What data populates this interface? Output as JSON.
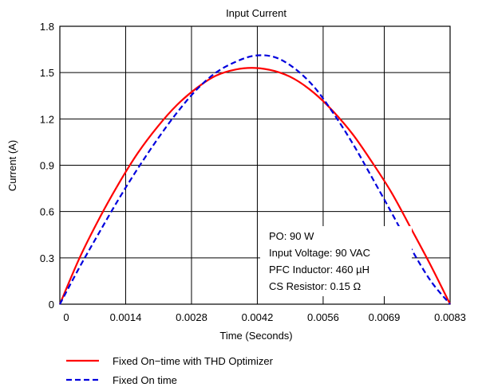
{
  "chart_data": {
    "type": "line",
    "title": "Input Current",
    "xlabel": "Time (Seconds)",
    "ylabel": "Current (A)",
    "xlim": [
      0,
      0.0083
    ],
    "ylim": [
      0,
      1.8
    ],
    "x_ticks": [
      "0",
      "0.0014",
      "0.0028",
      "0.0042",
      "0.0056",
      "0.0069",
      "0.0083"
    ],
    "y_ticks": [
      "0",
      "0.3",
      "0.6",
      "0.9",
      "1.2",
      "1.5",
      "1.8"
    ],
    "grid": true,
    "legend_position": "bottom-left",
    "annotation": [
      "PO: 90 W",
      "Input Voltage: 90 VAC",
      "PFC Inductor: 460 µH",
      "CS Resistor: 0.15 Ω"
    ],
    "series": [
      {
        "name": "Fixed On−time with THD Optimizer",
        "color": "#ff0000",
        "style": "solid",
        "x": [
          0,
          0.00042,
          0.00083,
          0.00125,
          0.00166,
          0.00208,
          0.00249,
          0.00291,
          0.00332,
          0.00374,
          0.00415,
          0.00457,
          0.00498,
          0.0054,
          0.00581,
          0.00623,
          0.00664,
          0.00706,
          0.00747,
          0.00789,
          0.0083
        ],
        "y": [
          0.0,
          0.3,
          0.55,
          0.78,
          0.98,
          1.15,
          1.29,
          1.4,
          1.48,
          1.52,
          1.53,
          1.51,
          1.46,
          1.37,
          1.25,
          1.1,
          0.92,
          0.72,
          0.49,
          0.25,
          0.0
        ]
      },
      {
        "name": "Fixed On time",
        "color": "#0000dd",
        "style": "dashed",
        "x": [
          0,
          0.00042,
          0.00083,
          0.00125,
          0.00166,
          0.00208,
          0.00249,
          0.00291,
          0.00332,
          0.00374,
          0.00415,
          0.00457,
          0.00498,
          0.0054,
          0.00581,
          0.00623,
          0.00664,
          0.00706,
          0.00747,
          0.00789,
          0.0083
        ],
        "y": [
          0.0,
          0.24,
          0.46,
          0.68,
          0.88,
          1.07,
          1.24,
          1.39,
          1.5,
          1.57,
          1.61,
          1.6,
          1.53,
          1.41,
          1.24,
          1.04,
          0.82,
          0.59,
          0.36,
          0.15,
          0.0
        ]
      }
    ]
  }
}
